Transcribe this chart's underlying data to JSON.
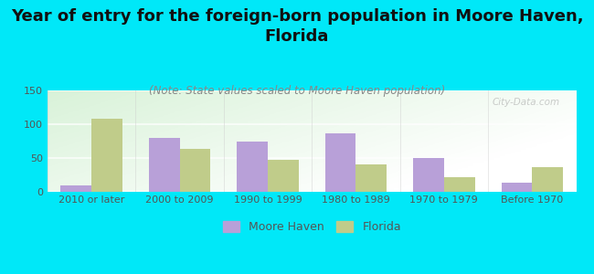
{
  "title": "Year of entry for the foreign-born population in Moore Haven,\nFlorida",
  "subtitle": "(Note: State values scaled to Moore Haven population)",
  "categories": [
    "2010 or later",
    "2000 to 2009",
    "1990 to 1999",
    "1980 to 1989",
    "1970 to 1979",
    "Before 1970"
  ],
  "moore_haven": [
    10,
    80,
    75,
    86,
    50,
    14
  ],
  "florida": [
    108,
    63,
    47,
    40,
    22,
    36
  ],
  "moore_haven_color": "#b8a0d8",
  "florida_color": "#c0cc8a",
  "background_color": "#00e8f8",
  "ylim": [
    0,
    150
  ],
  "yticks": [
    0,
    50,
    100,
    150
  ],
  "bar_width": 0.35,
  "title_fontsize": 13,
  "subtitle_fontsize": 8.5,
  "legend_fontsize": 9,
  "tick_fontsize": 8,
  "watermark": "City-Data.com"
}
